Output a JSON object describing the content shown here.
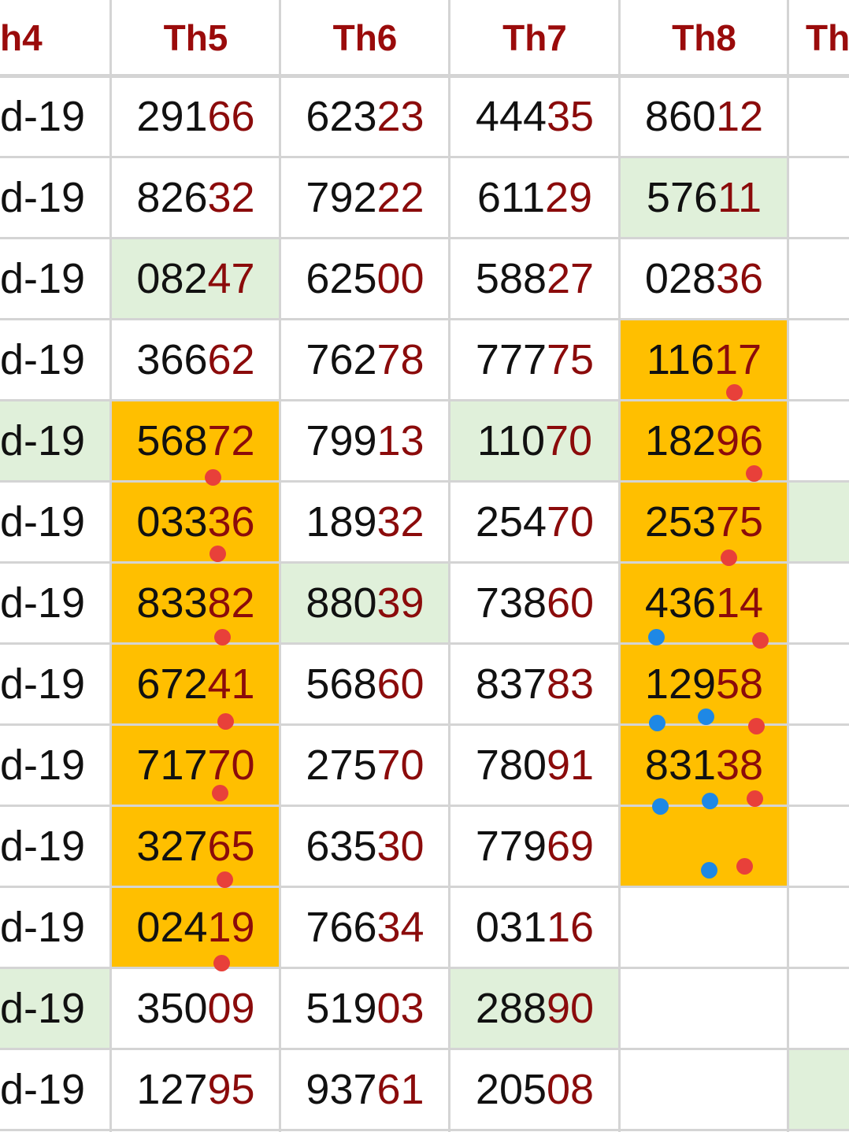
{
  "colors": {
    "header_text": "#9a0b0b",
    "tail_digits": "#8b0b0b",
    "green_highlight": "#e0f0da",
    "orange_highlight": "#ffbf00",
    "red_marker": "#e8403a",
    "blue_marker": "#1e88e5"
  },
  "headers": [
    "h4",
    "Th5",
    "Th6",
    "Th7",
    "Th8",
    "Th"
  ],
  "rows": [
    {
      "cells": [
        {
          "v": "d-19"
        },
        {
          "v": "29166"
        },
        {
          "v": "62323"
        },
        {
          "v": "44435"
        },
        {
          "v": "86012"
        },
        {
          "v": ""
        }
      ]
    },
    {
      "cells": [
        {
          "v": "d-19"
        },
        {
          "v": "82632"
        },
        {
          "v": "79222"
        },
        {
          "v": "61129"
        },
        {
          "v": "57611",
          "hl": "green"
        },
        {
          "v": ""
        }
      ]
    },
    {
      "cells": [
        {
          "v": "d-19"
        },
        {
          "v": "08247",
          "hl": "green"
        },
        {
          "v": "62500"
        },
        {
          "v": "58827"
        },
        {
          "v": "02836"
        },
        {
          "v": ""
        }
      ]
    },
    {
      "cells": [
        {
          "v": "d-19"
        },
        {
          "v": "36662"
        },
        {
          "v": "76278"
        },
        {
          "v": "77775"
        },
        {
          "v": "11617",
          "hl": "orange"
        },
        {
          "v": ""
        }
      ]
    },
    {
      "cells": [
        {
          "v": "d-19",
          "hl": "green"
        },
        {
          "v": "56872",
          "hl": "orange"
        },
        {
          "v": "79913"
        },
        {
          "v": "11070",
          "hl": "green"
        },
        {
          "v": "18296",
          "hl": "orange"
        },
        {
          "v": ""
        }
      ]
    },
    {
      "cells": [
        {
          "v": "d-19"
        },
        {
          "v": "03336",
          "hl": "orange"
        },
        {
          "v": "18932"
        },
        {
          "v": "25470"
        },
        {
          "v": "25375",
          "hl": "orange"
        },
        {
          "v": "",
          "hl": "green"
        }
      ]
    },
    {
      "cells": [
        {
          "v": "d-19"
        },
        {
          "v": "83382",
          "hl": "orange"
        },
        {
          "v": "88039",
          "hl": "green"
        },
        {
          "v": "73860"
        },
        {
          "v": "43614",
          "hl": "orange"
        },
        {
          "v": ""
        }
      ]
    },
    {
      "cells": [
        {
          "v": "d-19"
        },
        {
          "v": "67241",
          "hl": "orange"
        },
        {
          "v": "56860"
        },
        {
          "v": "83783"
        },
        {
          "v": "12958",
          "hl": "orange"
        },
        {
          "v": ""
        }
      ]
    },
    {
      "cells": [
        {
          "v": "d-19"
        },
        {
          "v": "71770",
          "hl": "orange"
        },
        {
          "v": "27570"
        },
        {
          "v": "78091"
        },
        {
          "v": "83138",
          "hl": "orange"
        },
        {
          "v": ""
        }
      ]
    },
    {
      "cells": [
        {
          "v": "d-19"
        },
        {
          "v": "32765",
          "hl": "orange"
        },
        {
          "v": "63530"
        },
        {
          "v": "77969"
        },
        {
          "v": "",
          "hl": "orange"
        },
        {
          "v": ""
        }
      ]
    },
    {
      "cells": [
        {
          "v": "d-19"
        },
        {
          "v": "02419",
          "hl": "orange"
        },
        {
          "v": "76634"
        },
        {
          "v": "03116"
        },
        {
          "v": ""
        },
        {
          "v": ""
        }
      ]
    },
    {
      "cells": [
        {
          "v": "d-19",
          "hl": "green"
        },
        {
          "v": "35009"
        },
        {
          "v": "51903"
        },
        {
          "v": "28890",
          "hl": "green"
        },
        {
          "v": ""
        },
        {
          "v": ""
        }
      ]
    },
    {
      "cells": [
        {
          "v": "d-19"
        },
        {
          "v": "12795"
        },
        {
          "v": "93761"
        },
        {
          "v": "20508"
        },
        {
          "v": ""
        },
        {
          "v": "",
          "hl": "green"
        }
      ]
    }
  ]
}
